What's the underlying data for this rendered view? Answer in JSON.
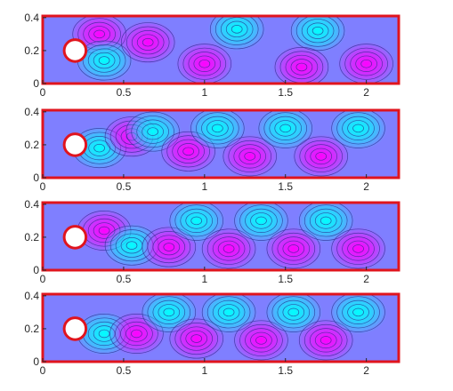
{
  "chart_data": [
    {
      "type": "heatmap",
      "xlim": [
        0,
        2.2
      ],
      "ylim": [
        0,
        0.41
      ],
      "x_ticks": [
        "0",
        "0.5",
        "1",
        "1.5",
        "2"
      ],
      "y_ticks": [
        "0",
        "0.2",
        "0.4"
      ],
      "colormap": [
        "#00ffff",
        "#ff00ff"
      ],
      "border_color": "#e0141e",
      "cylinder": {
        "cx": 0.2,
        "cy": 0.2,
        "r": 0.05
      },
      "vortices": [
        {
          "x": 0.35,
          "y": 0.3,
          "sign": -1
        },
        {
          "x": 0.38,
          "y": 0.14,
          "sign": 1
        },
        {
          "x": 0.65,
          "y": 0.25,
          "sign": -1
        },
        {
          "x": 1.2,
          "y": 0.33,
          "sign": 1
        },
        {
          "x": 1.7,
          "y": 0.32,
          "sign": 1
        },
        {
          "x": 1.0,
          "y": 0.12,
          "sign": -1
        },
        {
          "x": 1.6,
          "y": 0.1,
          "sign": -1
        },
        {
          "x": 2.0,
          "y": 0.12,
          "sign": -1
        }
      ]
    },
    {
      "type": "heatmap",
      "xlim": [
        0,
        2.2
      ],
      "ylim": [
        0,
        0.41
      ],
      "x_ticks": [
        "0",
        "0.5",
        "1",
        "1.5",
        "2"
      ],
      "y_ticks": [
        "0",
        "0.2",
        "0.4"
      ],
      "colormap": [
        "#00ffff",
        "#ff00ff"
      ],
      "border_color": "#e0141e",
      "cylinder": {
        "cx": 0.2,
        "cy": 0.2,
        "r": 0.05
      },
      "vortices": [
        {
          "x": 0.35,
          "y": 0.18,
          "sign": 1
        },
        {
          "x": 0.55,
          "y": 0.25,
          "sign": -1
        },
        {
          "x": 0.68,
          "y": 0.28,
          "sign": 1
        },
        {
          "x": 0.9,
          "y": 0.16,
          "sign": -1
        },
        {
          "x": 1.08,
          "y": 0.3,
          "sign": 1
        },
        {
          "x": 1.28,
          "y": 0.13,
          "sign": -1
        },
        {
          "x": 1.5,
          "y": 0.3,
          "sign": 1
        },
        {
          "x": 1.72,
          "y": 0.13,
          "sign": -1
        },
        {
          "x": 1.95,
          "y": 0.3,
          "sign": 1
        }
      ]
    },
    {
      "type": "heatmap",
      "xlim": [
        0,
        2.2
      ],
      "ylim": [
        0,
        0.41
      ],
      "x_ticks": [
        "0",
        "0.5",
        "1",
        "1.5",
        "2"
      ],
      "y_ticks": [
        "0",
        "0.2",
        "0.4"
      ],
      "colormap": [
        "#00ffff",
        "#ff00ff"
      ],
      "border_color": "#e0141e",
      "cylinder": {
        "cx": 0.2,
        "cy": 0.2,
        "r": 0.05
      },
      "vortices": [
        {
          "x": 0.38,
          "y": 0.24,
          "sign": -1
        },
        {
          "x": 0.55,
          "y": 0.15,
          "sign": 1
        },
        {
          "x": 0.78,
          "y": 0.14,
          "sign": -1
        },
        {
          "x": 0.95,
          "y": 0.3,
          "sign": 1
        },
        {
          "x": 1.15,
          "y": 0.13,
          "sign": -1
        },
        {
          "x": 1.35,
          "y": 0.3,
          "sign": 1
        },
        {
          "x": 1.55,
          "y": 0.13,
          "sign": -1
        },
        {
          "x": 1.75,
          "y": 0.3,
          "sign": 1
        },
        {
          "x": 1.95,
          "y": 0.13,
          "sign": -1
        }
      ]
    },
    {
      "type": "heatmap",
      "xlim": [
        0,
        2.2
      ],
      "ylim": [
        0,
        0.41
      ],
      "x_ticks": [
        "0",
        "0.5",
        "1",
        "1.5",
        "2"
      ],
      "y_ticks": [
        "0",
        "0.2",
        "0.4"
      ],
      "colormap": [
        "#00ffff",
        "#ff00ff"
      ],
      "border_color": "#e0141e",
      "cylinder": {
        "cx": 0.2,
        "cy": 0.2,
        "r": 0.05
      },
      "vortices": [
        {
          "x": 0.38,
          "y": 0.17,
          "sign": 1
        },
        {
          "x": 0.58,
          "y": 0.17,
          "sign": -1
        },
        {
          "x": 0.78,
          "y": 0.3,
          "sign": 1
        },
        {
          "x": 0.95,
          "y": 0.14,
          "sign": -1
        },
        {
          "x": 1.15,
          "y": 0.3,
          "sign": 1
        },
        {
          "x": 1.35,
          "y": 0.13,
          "sign": -1
        },
        {
          "x": 1.55,
          "y": 0.3,
          "sign": 1
        },
        {
          "x": 1.75,
          "y": 0.13,
          "sign": -1
        },
        {
          "x": 1.95,
          "y": 0.3,
          "sign": 1
        }
      ]
    }
  ]
}
